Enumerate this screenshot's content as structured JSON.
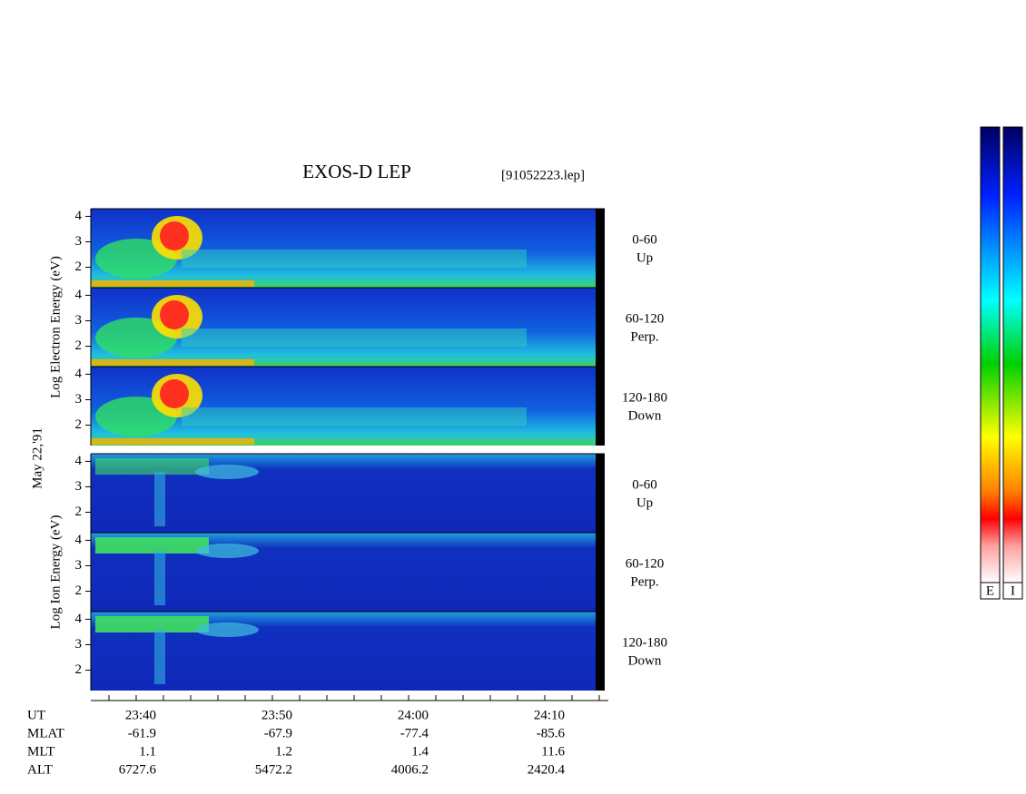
{
  "title": "EXOS-D LEP",
  "file": "[91052223.lep]",
  "date": "May 22,'91",
  "groups": [
    {
      "label": "Log Electron Energy (eV)",
      "panels": [
        {
          "range": "0-60",
          "dir": "Up",
          "ylim": [
            1.2,
            4.3
          ],
          "yticks": [
            2,
            3,
            4
          ]
        },
        {
          "range": "60-120",
          "dir": "Perp.",
          "ylim": [
            1.2,
            4.3
          ],
          "yticks": [
            2,
            3,
            4
          ]
        },
        {
          "range": "120-180",
          "dir": "Down",
          "ylim": [
            1.2,
            4.3
          ],
          "yticks": [
            2,
            3,
            4
          ]
        }
      ]
    },
    {
      "label": "Log Ion Energy (eV)",
      "panels": [
        {
          "range": "0-60",
          "dir": "Up",
          "ylim": [
            1.2,
            4.3
          ],
          "yticks": [
            2,
            3,
            4
          ]
        },
        {
          "range": "60-120",
          "dir": "Perp.",
          "ylim": [
            1.2,
            4.3
          ],
          "yticks": [
            2,
            3,
            4
          ]
        },
        {
          "range": "120-180",
          "dir": "Down",
          "ylim": [
            1.2,
            4.3
          ],
          "yticks": [
            2,
            3,
            4
          ]
        }
      ]
    }
  ],
  "orbit": [
    [
      "UT",
      "23:40",
      "23:50",
      "24:00",
      "24:10"
    ],
    [
      "MLAT",
      "-61.9",
      "-67.9",
      "-77.4",
      "-85.6"
    ],
    [
      "MLT",
      "1.1",
      "1.2",
      "1.4",
      "11.6"
    ],
    [
      "ALT",
      "6727.6",
      "5472.2",
      "4006.2",
      "2420.4"
    ]
  ],
  "colorbars": [
    "E",
    "I"
  ]
}
